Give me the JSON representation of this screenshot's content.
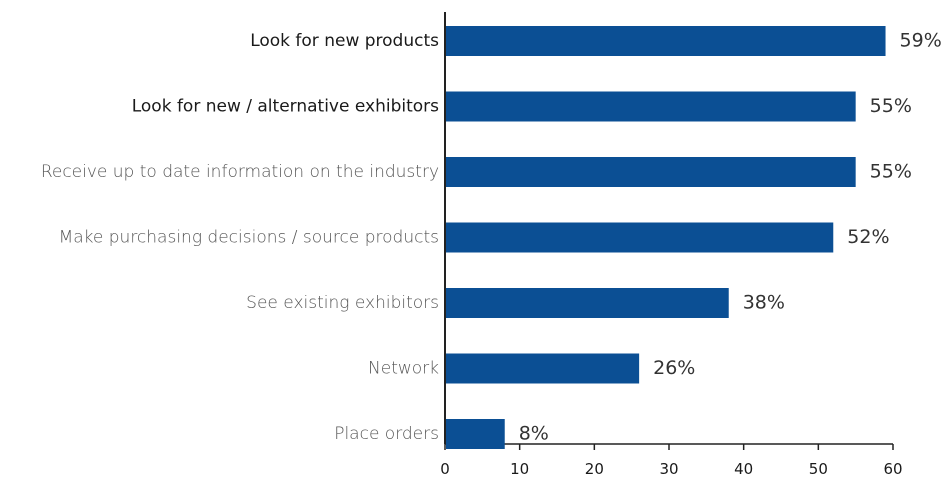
{
  "chart_data": {
    "type": "bar",
    "orientation": "horizontal",
    "categories": [
      "Look for new products",
      "Look for new / alternative exhibitors",
      "Receive up to date information on the industry",
      "Make purchasing decisions / source products",
      "See existing exhibitors",
      "Network",
      "Place orders"
    ],
    "values": [
      59,
      55,
      55,
      52,
      38,
      26,
      8
    ],
    "value_labels": [
      "59%",
      "55%",
      "55%",
      "52%",
      "38%",
      "26%",
      "8%"
    ],
    "xticks": [
      0,
      10,
      20,
      30,
      40,
      50,
      60
    ],
    "xlim": [
      0,
      60
    ],
    "bar_color": "#0b4f94",
    "title": "",
    "xlabel": "",
    "ylabel": "",
    "grid": false,
    "legend": "none"
  }
}
